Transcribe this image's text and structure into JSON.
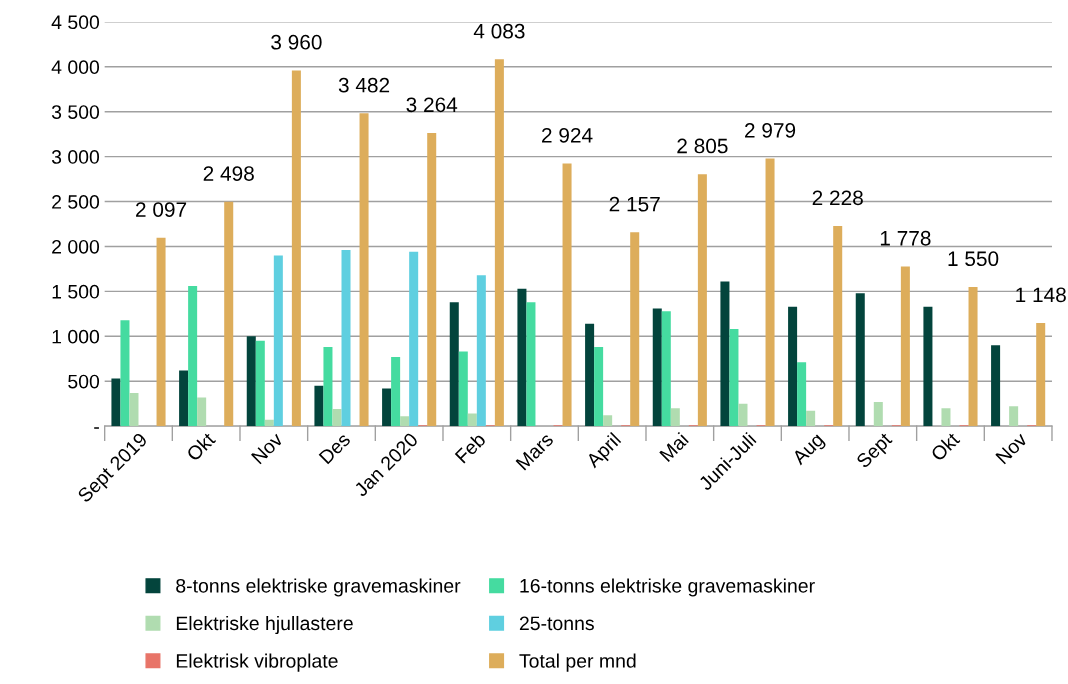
{
  "chart_data": {
    "type": "bar",
    "categories": [
      "Sept 2019",
      "Okt",
      "Nov",
      "Des",
      "Jan 2020",
      "Feb",
      "Mars",
      "April",
      "Mai",
      "Juni-Juli",
      "Aug",
      "Sept",
      "Okt",
      "Nov"
    ],
    "series": [
      {
        "name": "8-tonns elektriske gravemaskiner",
        "color": "#03443c",
        "values": [
          530,
          620,
          1000,
          450,
          420,
          1380,
          1530,
          1140,
          1310,
          1610,
          1330,
          1480,
          1330,
          900
        ]
      },
      {
        "name": "16-tonns elektriske gravemaskiner",
        "color": "#45dba0",
        "values": [
          1180,
          1560,
          950,
          880,
          770,
          830,
          1380,
          880,
          1280,
          1080,
          710,
          null,
          null,
          null
        ]
      },
      {
        "name": "Elektriske hjullastere",
        "color": "#b0dcb0",
        "values": [
          370,
          320,
          70,
          190,
          110,
          140,
          null,
          120,
          200,
          250,
          170,
          270,
          200,
          220
        ]
      },
      {
        "name": "25-tonns",
        "color": "#5fcfe0",
        "values": [
          null,
          null,
          1900,
          1960,
          1940,
          1680,
          null,
          null,
          null,
          null,
          null,
          null,
          null,
          null
        ]
      },
      {
        "name": "Elektrisk vibroplate",
        "color": "#e87468",
        "values": [
          null,
          null,
          null,
          null,
          10,
          10,
          10,
          10,
          10,
          10,
          10,
          10,
          10,
          10
        ]
      },
      {
        "name": "Total per mnd",
        "color": "#ddad5b",
        "values": [
          2097,
          2498,
          3960,
          3482,
          3264,
          4083,
          2924,
          2157,
          2805,
          2979,
          2228,
          1778,
          1550,
          1148
        ],
        "value_labels": [
          "2 097",
          "2 498",
          "3 960",
          "3 482",
          "3 264",
          "4 083",
          "2 924",
          "2 157",
          "2 805",
          "2 979",
          "2 228",
          "1 778",
          "1 550",
          "1 148"
        ]
      }
    ],
    "ylim": [
      0,
      4500
    ],
    "yticks": [
      {
        "value": 0,
        "label": "-"
      },
      500,
      {
        "value": 1000,
        "label": "1 000"
      },
      {
        "value": 1500,
        "label": "1 500"
      },
      {
        "value": 2000,
        "label": "2 000"
      },
      {
        "value": 2500,
        "label": "2 500"
      },
      {
        "value": 3000,
        "label": "3 000"
      },
      {
        "value": 3500,
        "label": "3 500"
      },
      {
        "value": 4000,
        "label": "4 000"
      },
      {
        "value": 4500,
        "label": "4 500"
      }
    ],
    "grid": "y",
    "legend": "bottom"
  }
}
